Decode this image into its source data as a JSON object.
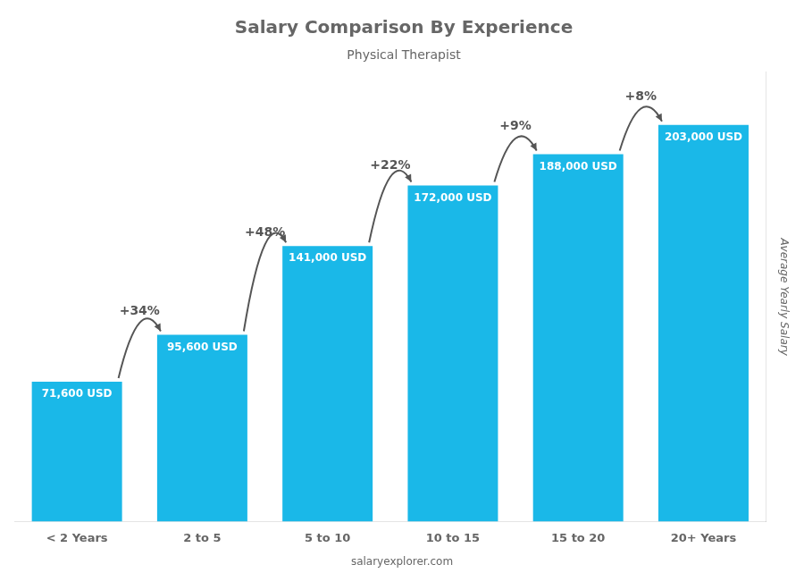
{
  "chart_data": {
    "type": "bar",
    "title": "Salary Comparison By Experience",
    "subtitle": "Physical Therapist",
    "ylabel": "Average Yearly Salary",
    "categories": [
      "< 2 Years",
      "2 to 5",
      "5 to 10",
      "10 to 15",
      "15 to 20",
      "20+ Years"
    ],
    "values": [
      71600,
      95600,
      141000,
      172000,
      188000,
      203000
    ],
    "value_labels": [
      "71,600 USD",
      "95,600 USD",
      "141,000 USD",
      "172,000 USD",
      "188,000 USD",
      "203,000 USD"
    ],
    "data_labels": true,
    "annotations": [
      "+34%",
      "+48%",
      "+22%",
      "+9%",
      "+8%"
    ],
    "footer": "salaryexplorer.com",
    "color": "#1ab8e8",
    "ylim": [
      0,
      230000
    ],
    "grid": false,
    "tick_labels": "x"
  }
}
